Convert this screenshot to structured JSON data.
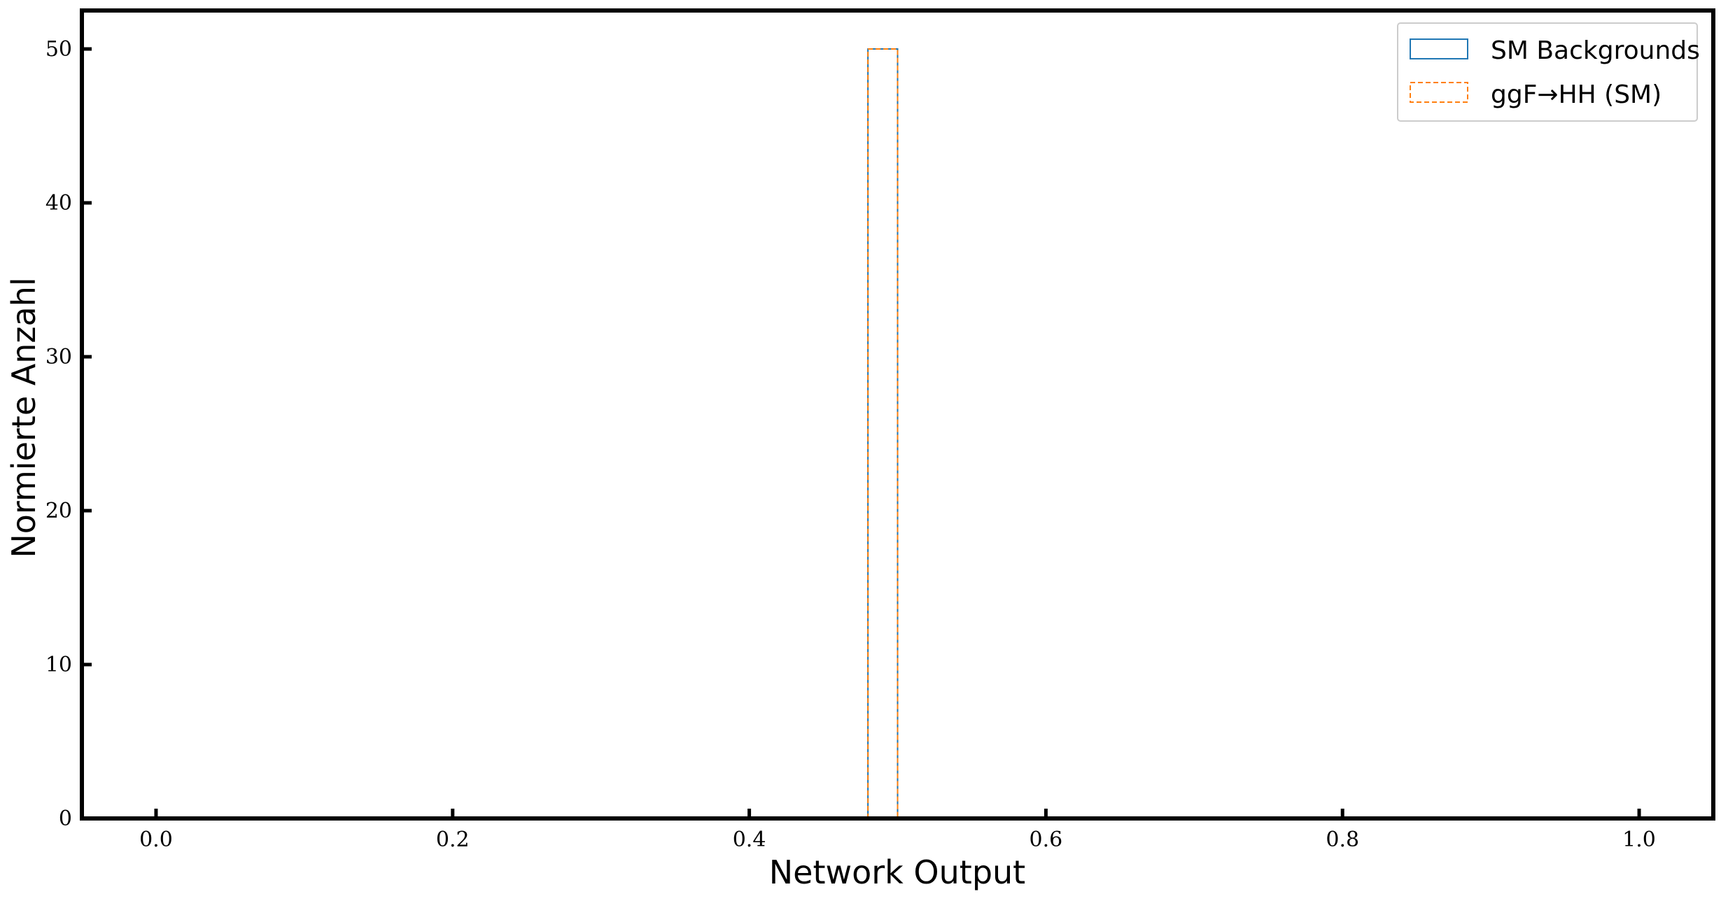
{
  "chart_data": {
    "type": "histogram",
    "xlabel": "Network Output",
    "ylabel": "Normierte Anzahl",
    "xlim": [
      -0.05,
      1.05
    ],
    "ylim": [
      0,
      52.5
    ],
    "xticks": [
      "0.0",
      "0.2",
      "0.4",
      "0.6",
      "0.8",
      "1.0"
    ],
    "xtick_values": [
      0.0,
      0.2,
      0.4,
      0.6,
      0.8,
      1.0
    ],
    "yticks": [
      "0",
      "10",
      "20",
      "30",
      "40",
      "50"
    ],
    "ytick_values": [
      0,
      10,
      20,
      30,
      40,
      50
    ],
    "grid": false,
    "legend_position": "top-right",
    "series": [
      {
        "name": "SM Backgrounds",
        "color": "#1f77b4",
        "linestyle": "solid",
        "histtype": "step",
        "bins": [
          {
            "x0": 0.48,
            "x1": 0.5,
            "value": 50
          }
        ]
      },
      {
        "name": "ggF→HH (SM)",
        "color": "#ff7f0e",
        "linestyle": "dashed",
        "histtype": "step",
        "bins": [
          {
            "x0": 0.48,
            "x1": 0.5,
            "value": 50
          }
        ]
      }
    ]
  }
}
